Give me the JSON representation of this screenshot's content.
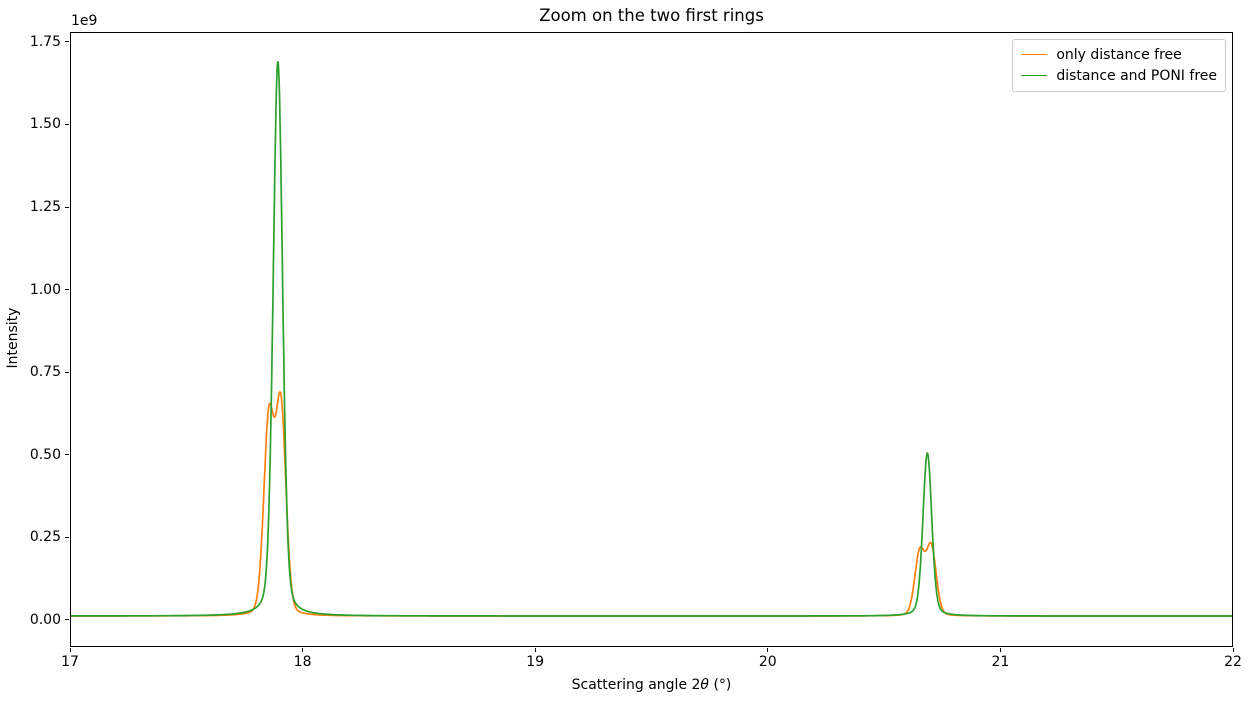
{
  "figure": {
    "title": "Zoom on the two first rings",
    "ylabel": "Intensity",
    "offset_label": "1e9",
    "xlabel_parts": {
      "prefix": "Scattering angle 2",
      "theta": "θ",
      "suffix": " (°)"
    }
  },
  "legend": {
    "position": "upper right",
    "entries": [
      {
        "label": "only distance free",
        "color": "#ff7f0e"
      },
      {
        "label": "distance and PONI free",
        "color": "#2ca02c"
      }
    ]
  },
  "chart_data": {
    "type": "line",
    "title": "Zoom on the two first rings",
    "xlabel": "Scattering angle 2θ (°)",
    "ylabel": "Intensity",
    "y_offset_factor": "1e9",
    "grid": false,
    "legend_position": "upper right",
    "xlim": [
      17,
      22
    ],
    "ylim_e9": [
      -0.082,
      1.78
    ],
    "x_ticks": [
      17,
      18,
      19,
      20,
      21,
      22
    ],
    "x_tick_labels": [
      "17",
      "18",
      "19",
      "20",
      "21",
      "22"
    ],
    "y_ticks_e9": [
      0,
      0.25,
      0.5,
      0.75,
      1.0,
      1.25,
      1.5,
      1.75
    ],
    "y_tick_labels": [
      "0.00",
      "0.25",
      "0.50",
      "0.75",
      "1.00",
      "1.25",
      "1.50",
      "1.75"
    ],
    "sample_step": 0.002,
    "series": [
      {
        "name": "only distance free",
        "color": "#ff7f0e",
        "line_width": 1.7,
        "baseline_e9": 0.009,
        "eta": 0.15,
        "peaks": [
          {
            "center_2theta": 17.852,
            "height_e9": 0.585,
            "fwhm_deg": 0.052
          },
          {
            "center_2theta": 17.904,
            "height_e9": 0.625,
            "fwhm_deg": 0.052
          },
          {
            "center_2theta": 20.655,
            "height_e9": 0.19,
            "fwhm_deg": 0.05
          },
          {
            "center_2theta": 20.705,
            "height_e9": 0.205,
            "fwhm_deg": 0.05
          }
        ],
        "observed_maxima": [
          {
            "x_2theta": 17.91,
            "y_e9": 0.675
          },
          {
            "x_2theta": 20.71,
            "y_e9": 0.22
          }
        ]
      },
      {
        "name": "distance and PONI free",
        "color": "#2ca02c",
        "line_width": 1.7,
        "baseline_e9": 0.009,
        "eta": 0.25,
        "peaks": [
          {
            "center_2theta": 17.891,
            "height_e9": 1.685,
            "fwhm_deg": 0.048
          },
          {
            "center_2theta": 20.688,
            "height_e9": 0.495,
            "fwhm_deg": 0.045
          }
        ],
        "observed_maxima": [
          {
            "x_2theta": 17.89,
            "y_e9": 1.695
          },
          {
            "x_2theta": 20.69,
            "y_e9": 0.51
          }
        ]
      }
    ]
  }
}
